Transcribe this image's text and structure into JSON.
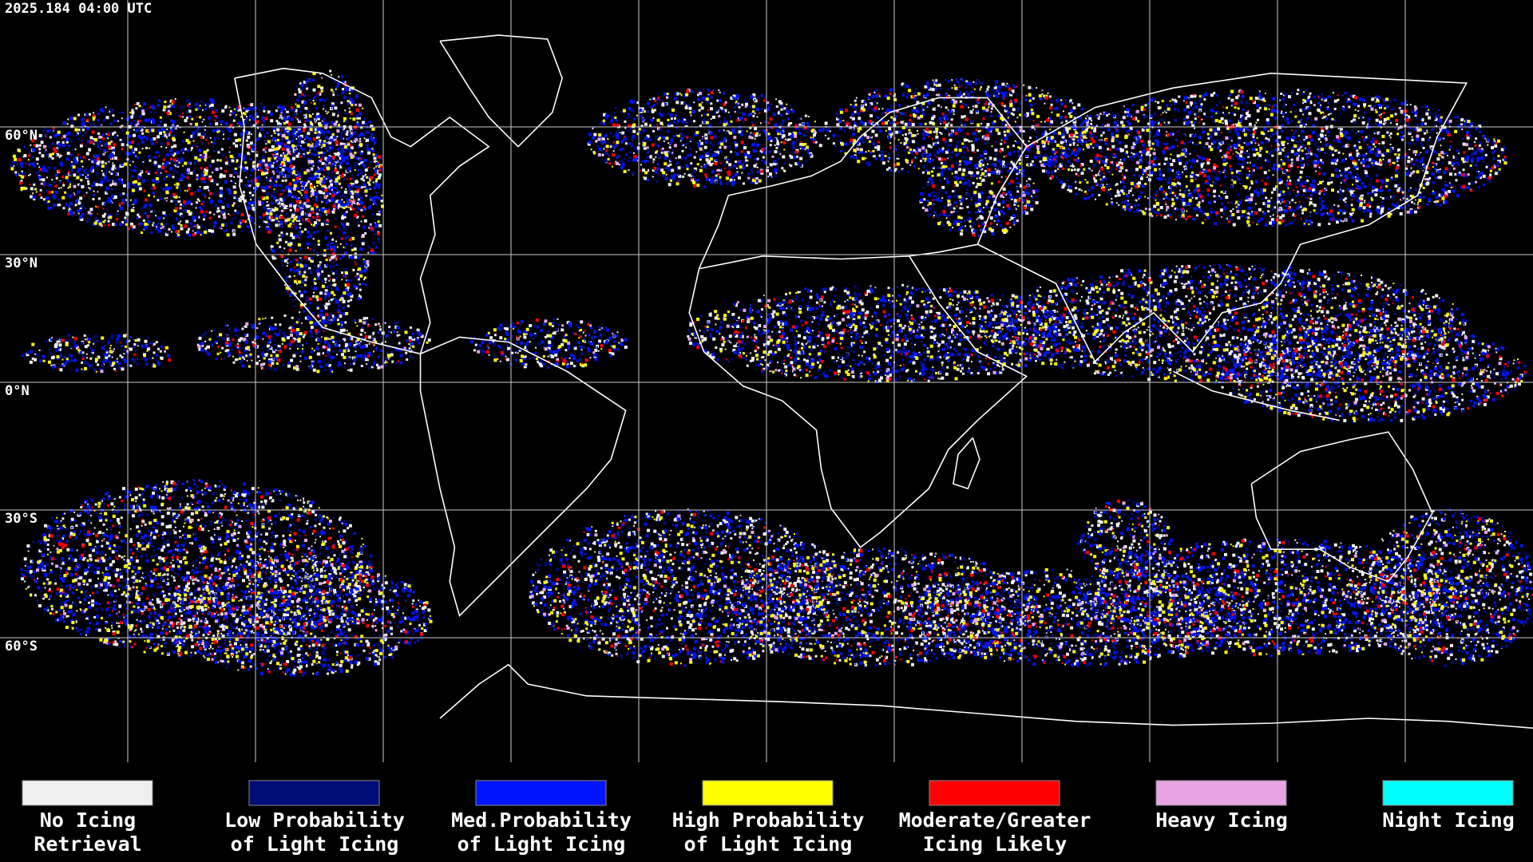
{
  "timestamp": "2025.184 04:00 UTC",
  "latitude_labels": [
    "60°N",
    "30°N",
    "0°N",
    "30°S",
    "60°S"
  ],
  "legend": [
    {
      "lines": [
        "No Icing",
        "Retrieval"
      ],
      "color": "#f0f0f0"
    },
    {
      "lines": [
        "Low Probability",
        "of Light Icing"
      ],
      "color": "#000c78"
    },
    {
      "lines": [
        "Med.Probability",
        "of Light Icing"
      ],
      "color": "#0014ff"
    },
    {
      "lines": [
        "High Probability",
        "of Light Icing"
      ],
      "color": "#ffff00"
    },
    {
      "lines": [
        "Moderate/Greater",
        "Icing Likely"
      ],
      "color": "#ff0000"
    },
    {
      "lines": [
        "Heavy Icing"
      ],
      "color": "#e8a4e4"
    },
    {
      "lines": [
        "Night Icing"
      ],
      "color": "#00ffff"
    }
  ]
}
